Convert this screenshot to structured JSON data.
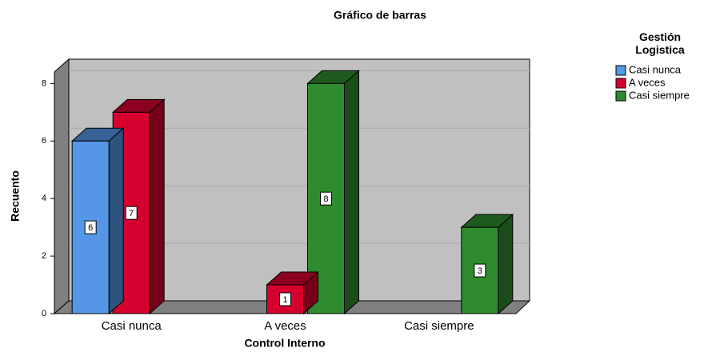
{
  "chart_data": {
    "type": "bar3d",
    "title": "Gráfico de barras",
    "x_label": "Control Interno",
    "y_label": "Recuento",
    "legend_title": "Gestión Logistica",
    "categories": [
      "Casi nunca",
      "A veces",
      "Casi siempre"
    ],
    "series": [
      {
        "name": "Casi nunca",
        "color": "#5597e6",
        "values": [
          6,
          null,
          null
        ]
      },
      {
        "name": "A veces",
        "color": "#d6002f",
        "values": [
          7,
          1,
          null
        ]
      },
      {
        "name": "Casi siempre",
        "color": "#2e8b2e",
        "values": [
          null,
          8,
          3
        ]
      }
    ],
    "ylim": [
      0,
      8.4
    ],
    "yticks": [
      0,
      2,
      4,
      6,
      8
    ],
    "grid": true,
    "legend": "right"
  }
}
